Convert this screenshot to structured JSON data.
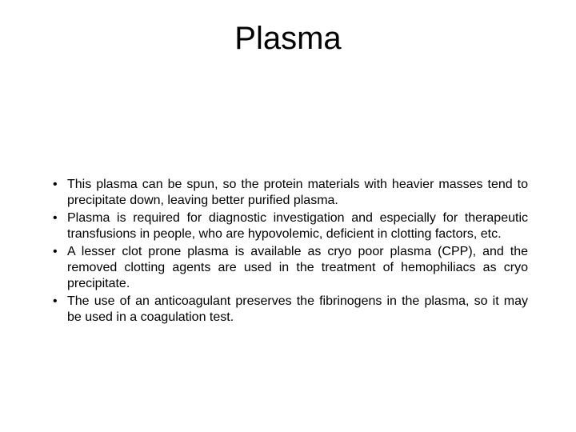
{
  "slide": {
    "title": "Plasma",
    "title_fontsize": 40,
    "title_color": "#000000",
    "body_fontsize": 16,
    "body_color": "#000000",
    "line_height": 1.25,
    "background_color": "#ffffff",
    "bullets": [
      "This plasma can be spun, so the protein materials with heavier masses tend to precipitate down, leaving better purified plasma.",
      "Plasma is required for diagnostic investigation and especially for therapeutic transfusions in people, who are hypovolemic, deficient in clotting factors, etc.",
      "A lesser clot prone plasma is available as cryo poor plasma (CPP), and the removed clotting agents are used in the treatment of hemophiliacs as cryo precipitate.",
      "The use of an anticoagulant preserves the fibrinogens in the plasma, so it may be used in a coagulation test."
    ]
  }
}
